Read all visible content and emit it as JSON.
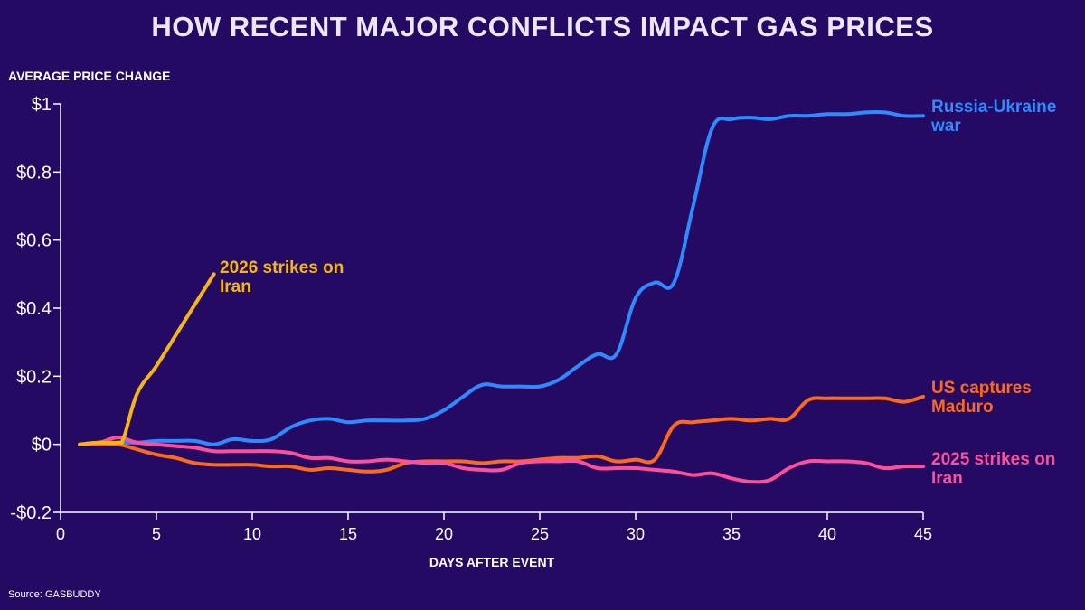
{
  "header": {
    "title": "HOW RECENT MAJOR CONFLICTS IMPACT GAS PRICES"
  },
  "footer": {
    "source": "Source: GASBUDDY"
  },
  "chart_data": {
    "type": "line",
    "title": "HOW RECENT MAJOR CONFLICTS IMPACT GAS PRICES",
    "xlabel": "DAYS AFTER EVENT",
    "ylabel": "AVERAGE PRICE CHANGE",
    "xlim": [
      0,
      45
    ],
    "ylim": [
      -0.2,
      1
    ],
    "x_ticks": [
      0,
      5,
      10,
      15,
      20,
      25,
      30,
      35,
      40,
      45
    ],
    "x_tick_labels": [
      "0",
      "5",
      "10",
      "15",
      "20",
      "25",
      "30",
      "35",
      "40",
      "45"
    ],
    "y_ticks": [
      -0.2,
      0,
      0.2,
      0.4,
      0.6,
      0.8,
      1
    ],
    "y_tick_labels": [
      "-$0.2",
      "$0",
      "$0.2",
      "$0.4",
      "$0.6",
      "$0.8",
      "$1"
    ],
    "grid": false,
    "legend": "inline labels",
    "series": [
      {
        "name": "Russia-Ukraine war",
        "label_lines": [
          "Russia-Ukraine",
          "war"
        ],
        "color": "#2e8bff",
        "x": [
          1,
          2,
          3,
          4,
          5,
          6,
          7,
          8,
          9,
          10,
          11,
          12,
          13,
          14,
          15,
          16,
          17,
          18,
          19,
          20,
          21,
          22,
          23,
          24,
          25,
          26,
          27,
          28,
          29,
          30,
          31,
          32,
          33,
          34,
          35,
          36,
          37,
          38,
          39,
          40,
          41,
          42,
          43,
          44,
          45
        ],
        "y": [
          0,
          0.005,
          0.005,
          0.005,
          0.01,
          0.01,
          0.01,
          0,
          0.015,
          0.01,
          0.015,
          0.05,
          0.07,
          0.075,
          0.065,
          0.07,
          0.07,
          0.07,
          0.075,
          0.1,
          0.14,
          0.175,
          0.17,
          0.17,
          0.17,
          0.19,
          0.23,
          0.265,
          0.265,
          0.43,
          0.475,
          0.475,
          0.7,
          0.93,
          0.955,
          0.96,
          0.955,
          0.965,
          0.965,
          0.97,
          0.97,
          0.975,
          0.975,
          0.965,
          0.965
        ]
      },
      {
        "name": "US captures Maduro",
        "label_lines": [
          "US captures",
          "Maduro"
        ],
        "color": "#ff6a1a",
        "x": [
          1,
          2,
          3,
          4,
          5,
          6,
          7,
          8,
          9,
          10,
          11,
          12,
          13,
          14,
          15,
          16,
          17,
          18,
          19,
          20,
          21,
          22,
          23,
          24,
          25,
          26,
          27,
          28,
          29,
          30,
          31,
          32,
          33,
          34,
          35,
          36,
          37,
          38,
          39,
          40,
          41,
          42,
          43,
          44,
          45
        ],
        "y": [
          0,
          0,
          0,
          -0.015,
          -0.03,
          -0.04,
          -0.055,
          -0.06,
          -0.06,
          -0.06,
          -0.065,
          -0.065,
          -0.075,
          -0.07,
          -0.075,
          -0.08,
          -0.075,
          -0.055,
          -0.05,
          -0.05,
          -0.05,
          -0.055,
          -0.05,
          -0.05,
          -0.045,
          -0.04,
          -0.04,
          -0.035,
          -0.05,
          -0.045,
          -0.045,
          0.055,
          0.065,
          0.07,
          0.075,
          0.07,
          0.075,
          0.075,
          0.13,
          0.135,
          0.135,
          0.135,
          0.135,
          0.125,
          0.14
        ]
      },
      {
        "name": "2025 strikes on Iran",
        "label_lines": [
          "2025 strikes on",
          "Iran"
        ],
        "color": "#ff4f9a",
        "x": [
          1,
          2,
          3,
          4,
          5,
          6,
          7,
          8,
          9,
          10,
          11,
          12,
          13,
          14,
          15,
          16,
          17,
          18,
          19,
          20,
          21,
          22,
          23,
          24,
          25,
          26,
          27,
          28,
          29,
          30,
          31,
          32,
          33,
          34,
          35,
          36,
          37,
          38,
          39,
          40,
          41,
          42,
          43,
          44,
          45
        ],
        "y": [
          0,
          0.005,
          0.02,
          0.005,
          0,
          -0.005,
          -0.01,
          -0.02,
          -0.02,
          -0.02,
          -0.02,
          -0.025,
          -0.04,
          -0.04,
          -0.05,
          -0.05,
          -0.045,
          -0.05,
          -0.055,
          -0.055,
          -0.07,
          -0.075,
          -0.075,
          -0.055,
          -0.05,
          -0.05,
          -0.05,
          -0.07,
          -0.07,
          -0.07,
          -0.075,
          -0.08,
          -0.09,
          -0.085,
          -0.1,
          -0.11,
          -0.105,
          -0.07,
          -0.05,
          -0.05,
          -0.05,
          -0.055,
          -0.07,
          -0.065,
          -0.065
        ]
      },
      {
        "name": "2026 strikes on Iran",
        "label_lines": [
          "2026 strikes on",
          "Iran"
        ],
        "color": "#f5b70f",
        "x": [
          1,
          2,
          3,
          3.3,
          4,
          5,
          6,
          7,
          8
        ],
        "y": [
          0,
          0.005,
          0.005,
          0.02,
          0.15,
          0.23,
          0.32,
          0.41,
          0.5
        ]
      }
    ]
  }
}
